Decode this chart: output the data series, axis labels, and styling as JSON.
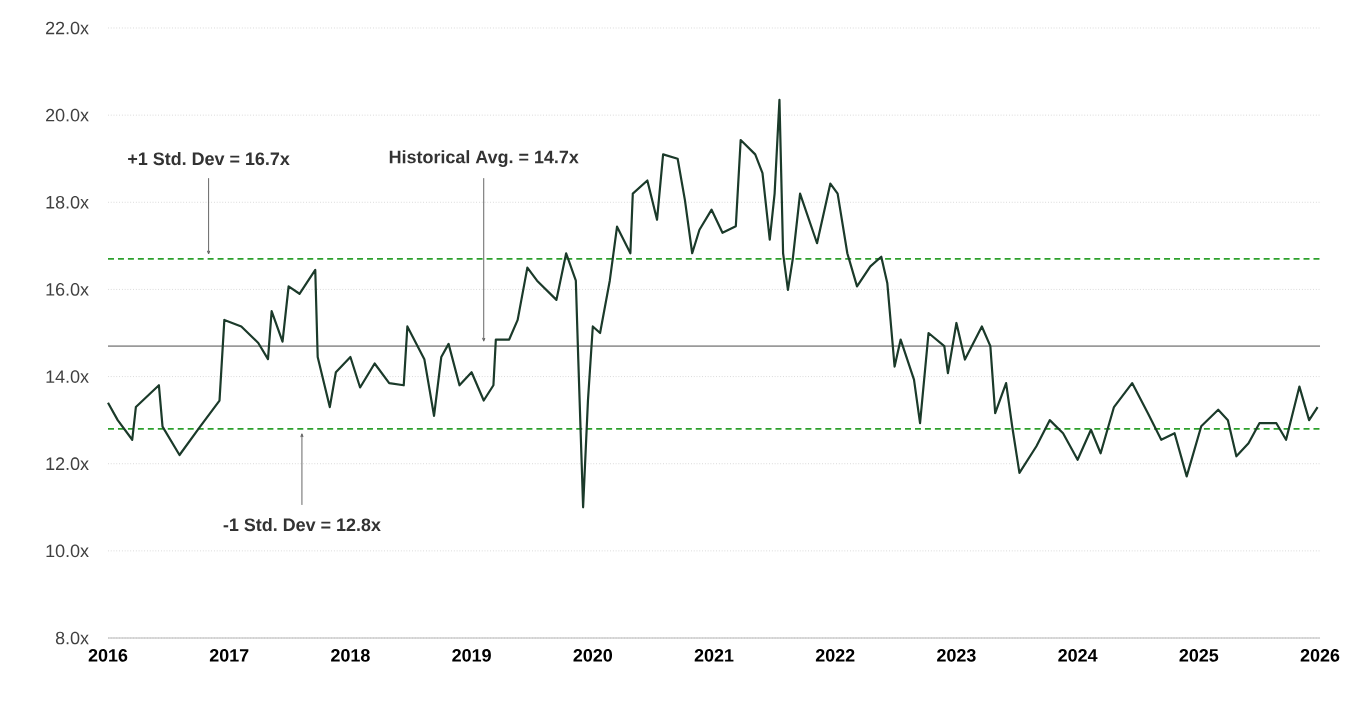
{
  "chart_data": {
    "type": "line",
    "xlim": [
      2016,
      2026
    ],
    "xticks": [
      2016,
      2017,
      2018,
      2019,
      2020,
      2021,
      2022,
      2023,
      2024,
      2025,
      2026
    ],
    "ylim": [
      8,
      22
    ],
    "yticks": [
      {
        "value": 8,
        "label": "8.0x"
      },
      {
        "value": 10,
        "label": "10.0x"
      },
      {
        "value": 12,
        "label": "12.0x"
      },
      {
        "value": 14,
        "label": "14.0x"
      },
      {
        "value": 16,
        "label": "16.0x"
      },
      {
        "value": 18,
        "label": "18.0x"
      },
      {
        "value": 20,
        "label": "20.0x"
      },
      {
        "value": 22,
        "label": "22.0x"
      }
    ],
    "grid": "y",
    "marker": "none",
    "line_style": "solid",
    "series": [
      {
        "color": "#1b3a2a",
        "x": [
          2016.0,
          2016.08,
          2016.2,
          2016.23,
          2016.42,
          2016.45,
          2016.59,
          2016.76,
          2016.92,
          2016.96,
          2017.1,
          2017.24,
          2017.32,
          2017.35,
          2017.44,
          2017.49,
          2017.58,
          2017.71,
          2017.73,
          2017.83,
          2017.88,
          2018.0,
          2018.08,
          2018.2,
          2018.32,
          2018.44,
          2018.47,
          2018.61,
          2018.69,
          2018.75,
          2018.81,
          2018.9,
          2019.0,
          2019.1,
          2019.18,
          2019.2,
          2019.31,
          2019.38,
          2019.46,
          2019.54,
          2019.7,
          2019.78,
          2019.86,
          2019.88,
          2019.92,
          2019.96,
          2020.0,
          2020.06,
          2020.14,
          2020.2,
          2020.31,
          2020.33,
          2020.45,
          2020.53,
          2020.58,
          2020.7,
          2020.76,
          2020.82,
          2020.88,
          2020.98,
          2021.07,
          2021.18,
          2021.22,
          2021.34,
          2021.4,
          2021.46,
          2021.5,
          2021.54,
          2021.57,
          2021.61,
          2021.65,
          2021.71,
          2021.85,
          2021.96,
          2022.02,
          2022.1,
          2022.18,
          2022.29,
          2022.38,
          2022.43,
          2022.49,
          2022.54,
          2022.65,
          2022.7,
          2022.77,
          2022.9,
          2022.93,
          2023.0,
          2023.07,
          2023.21,
          2023.28,
          2023.32,
          2023.41,
          2023.46,
          2023.52,
          2023.66,
          2023.77,
          2023.88,
          2024.0,
          2024.11,
          2024.19,
          2024.3,
          2024.45,
          2024.58,
          2024.69,
          2024.8,
          2024.9,
          2025.02,
          2025.16,
          2025.24,
          2025.31,
          2025.41,
          2025.5,
          2025.64,
          2025.72,
          2025.83,
          2025.91,
          2025.98
        ],
        "values": [
          13.4,
          13.0,
          12.55,
          13.3,
          13.8,
          12.85,
          12.2,
          12.85,
          13.45,
          15.3,
          15.15,
          14.77,
          14.4,
          15.5,
          14.8,
          16.07,
          15.9,
          16.45,
          14.45,
          13.3,
          14.1,
          14.45,
          13.75,
          14.3,
          13.85,
          13.8,
          15.15,
          14.4,
          13.1,
          14.45,
          14.75,
          13.8,
          14.1,
          13.45,
          13.8,
          14.85,
          14.85,
          15.3,
          16.5,
          16.2,
          15.76,
          16.83,
          16.2,
          14.4,
          11.0,
          13.45,
          15.15,
          15.0,
          16.2,
          17.44,
          16.83,
          18.2,
          18.5,
          17.6,
          19.1,
          19.0,
          18.05,
          16.83,
          17.37,
          17.83,
          17.3,
          17.45,
          19.43,
          19.1,
          18.67,
          17.14,
          18.2,
          20.35,
          16.83,
          15.99,
          16.7,
          18.2,
          17.06,
          18.43,
          18.2,
          16.83,
          16.07,
          16.53,
          16.75,
          16.14,
          14.23,
          14.85,
          13.93,
          12.93,
          15.0,
          14.7,
          14.08,
          15.23,
          14.39,
          15.15,
          14.7,
          13.16,
          13.85,
          12.86,
          11.79,
          12.4,
          13.0,
          12.7,
          12.09,
          12.78,
          12.24,
          13.3,
          13.85,
          13.16,
          12.55,
          12.7,
          11.71,
          12.86,
          13.24,
          13.0,
          12.17,
          12.47,
          12.93,
          12.93,
          12.55,
          13.77,
          13.0,
          13.3
        ]
      }
    ],
    "ref_lines": [
      {
        "axis": "y",
        "value": 16.7,
        "color": "#2ca02c",
        "line_style": "dashed"
      },
      {
        "axis": "y",
        "value": 14.7,
        "color": "#9a9a9a",
        "line_style": "solid"
      },
      {
        "axis": "y",
        "value": 12.8,
        "color": "#2ca02c",
        "line_style": "dashed"
      }
    ],
    "annotations": [
      {
        "text": "+1 Std. Dev = 16.7x",
        "x": 2016.83,
        "y": 16.7
      },
      {
        "text": "Historical Avg. = 14.7x",
        "x": 2019.1,
        "y": 14.7
      },
      {
        "text": "-1 Std. Dev = 12.8x",
        "x": 2017.6,
        "y": 12.8
      }
    ]
  }
}
